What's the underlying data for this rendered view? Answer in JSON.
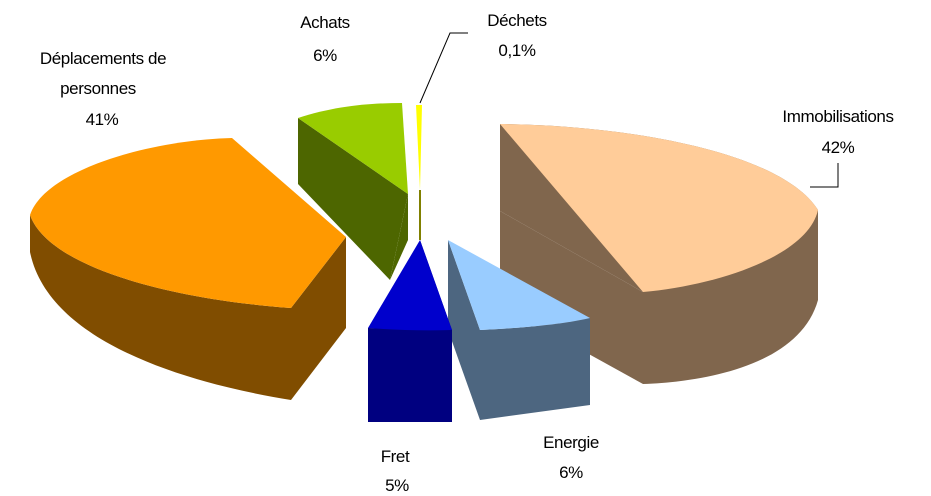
{
  "chart_data": {
    "type": "pie",
    "style": "3d-exploded",
    "title": "",
    "legend": "none",
    "slices": [
      {
        "category": "Immobilisations",
        "value": 42,
        "value_label": "42%",
        "colors": {
          "top": "#ffcc99",
          "side": "#80664d"
        }
      },
      {
        "category": "Energie",
        "value": 6,
        "value_label": "6%",
        "colors": {
          "top": "#99ccff",
          "side": "#4d6680"
        }
      },
      {
        "category": "Fret",
        "value": 5,
        "value_label": "5%",
        "colors": {
          "top": "#0000cc",
          "side": "#000080"
        }
      },
      {
        "category": "Déplacements de personnes",
        "label_lines": [
          "Déplacements de",
          "personnes"
        ],
        "value": 41,
        "value_label": "41%",
        "colors": {
          "top": "#ff9900",
          "side": "#804d00"
        }
      },
      {
        "category": "Achats",
        "value": 6,
        "value_label": "6%",
        "colors": {
          "top": "#99cc00",
          "side": "#4d6600"
        }
      },
      {
        "category": "Déchets",
        "value": 0.1,
        "value_label": "0,1%",
        "colors": {
          "top": "#ffff00",
          "side": "#808000"
        }
      }
    ]
  }
}
